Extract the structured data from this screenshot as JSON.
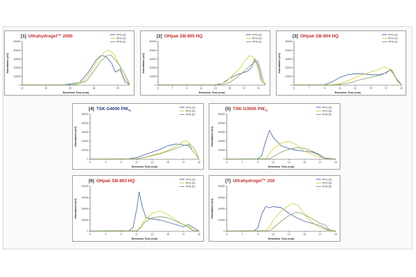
{
  "colors": {
    "panel_border": "#777777",
    "panel_background": "#ffffff",
    "title_number": "#222222",
    "title_name": "#c62828",
    "title_name_alt": "#27357e",
    "axis": "#444444"
  },
  "chart_data": [
    {
      "type": "line",
      "title_number": "[1]",
      "title_name": "Ultrahydrogel™ 2000",
      "title_subscript": "",
      "title_color": "#c62828",
      "xlabel": "Retention Time (min)",
      "ylabel": "Abundance (uV)",
      "xlim": [
        12,
        21
      ],
      "ylim": [
        0,
        50000
      ],
      "xticks": [
        12,
        14,
        16,
        18,
        20
      ],
      "yticks": [
        0,
        10000,
        20000,
        30000,
        40000,
        50000
      ],
      "legend_position": "top-right",
      "series": [
        {
          "name": "PPG-QC",
          "color": "#4f6fa8",
          "x": [
            12,
            15.5,
            16.8,
            17.5,
            18.2,
            18.6,
            19,
            19.5,
            19.8,
            20.2,
            20.6,
            21
          ],
          "y": [
            300,
            400,
            3000,
            14000,
            29000,
            34000,
            33000,
            25000,
            15000,
            18000,
            4000,
            500
          ]
        },
        {
          "name": "PPG-QC",
          "color": "#d7d23f",
          "x": [
            12,
            16.2,
            17.2,
            17.8,
            18.4,
            18.9,
            19.3,
            19.7,
            20.1,
            20.5,
            21
          ],
          "y": [
            300,
            400,
            5000,
            17000,
            30000,
            38000,
            40000,
            35000,
            24000,
            9000,
            600
          ]
        },
        {
          "name": "PPN-QC",
          "color": "#8aa86f",
          "x": [
            12,
            16.5,
            17.4,
            18,
            18.5,
            19,
            19.4,
            19.8,
            20.2,
            20.6,
            21
          ],
          "y": [
            300,
            400,
            5000,
            16000,
            26000,
            33000,
            35000,
            29000,
            22000,
            12000,
            1000
          ]
        }
      ]
    },
    {
      "type": "line",
      "title_number": "[2]",
      "title_name": "OHpak SB-805 HQ",
      "title_subscript": "",
      "title_color": "#c62828",
      "xlabel": "Retention Time (min)",
      "ylabel": "Abundance (uV)",
      "xlim": [
        5,
        20
      ],
      "ylim": [
        0,
        50000
      ],
      "xticks": [
        5,
        7,
        9,
        11,
        13,
        15,
        17,
        19
      ],
      "yticks": [
        0,
        10000,
        20000,
        30000,
        40000,
        50000
      ],
      "legend_position": "top-right",
      "series": [
        {
          "name": "PPG-QC",
          "color": "#4f6fa8",
          "x": [
            5,
            13,
            14,
            15,
            16,
            16.8,
            17.5,
            18,
            18.5,
            19,
            19.5,
            20
          ],
          "y": [
            300,
            500,
            2000,
            8000,
            12000,
            14000,
            16000,
            20000,
            30000,
            22000,
            4000,
            500
          ]
        },
        {
          "name": "PPG-QC",
          "color": "#d7d23f",
          "x": [
            5,
            13.5,
            14.5,
            15.5,
            16.5,
            17.2,
            17.8,
            18.3,
            18.8,
            19.3,
            20
          ],
          "y": [
            300,
            500,
            4000,
            12000,
            20000,
            29000,
            34000,
            32000,
            22000,
            6000,
            500
          ]
        },
        {
          "name": "PPN-QC",
          "color": "#8aa86f",
          "x": [
            5,
            14,
            15,
            16,
            17,
            17.8,
            18.4,
            18.9,
            19.3,
            19.7,
            20
          ],
          "y": [
            300,
            400,
            3000,
            9000,
            16000,
            22000,
            26000,
            28000,
            18000,
            5000,
            500
          ]
        }
      ]
    },
    {
      "type": "line",
      "title_number": "[3]",
      "title_name": "OHpak SB-804 HQ",
      "title_subscript": "",
      "title_color": "#c62828",
      "xlabel": "Retention Time (min)",
      "ylabel": "Abundance (uV)",
      "xlim": [
        5,
        19
      ],
      "ylim": [
        0,
        50000
      ],
      "xticks": [
        5,
        7,
        9,
        11,
        13,
        15,
        17,
        19
      ],
      "yticks": [
        0,
        10000,
        20000,
        30000,
        40000,
        50000
      ],
      "legend_position": "top-right",
      "series": [
        {
          "name": "PPG-QC",
          "color": "#4f6fa8",
          "x": [
            5,
            9,
            10,
            11,
            12,
            13,
            14,
            15,
            16,
            17,
            17.6,
            18.2,
            19
          ],
          "y": [
            300,
            500,
            4000,
            9000,
            12000,
            13000,
            13000,
            12000,
            12000,
            14000,
            18000,
            9000,
            800
          ]
        },
        {
          "name": "PPG-QC",
          "color": "#d7d23f",
          "x": [
            5,
            10,
            11,
            12,
            13,
            14,
            15,
            16,
            16.8,
            17.4,
            18,
            18.6,
            19
          ],
          "y": [
            300,
            500,
            2000,
            5000,
            9000,
            12000,
            15000,
            18000,
            21000,
            19000,
            12000,
            3000,
            500
          ]
        },
        {
          "name": "PPN-QC",
          "color": "#8aa86f",
          "x": [
            5,
            10.5,
            11.5,
            12.5,
            13.5,
            14.5,
            15.5,
            16.5,
            17.2,
            17.8,
            18.4,
            19
          ],
          "y": [
            300,
            500,
            1500,
            3000,
            6000,
            8000,
            10000,
            12000,
            16000,
            17000,
            6000,
            600
          ]
        }
      ]
    },
    {
      "type": "line",
      "title_number": "[4]",
      "title_name": "TSK G4000 PW",
      "title_subscript": "XL",
      "title_color": "#27357e",
      "xlabel": "Retention Time (min)",
      "ylabel": "Abundance (uV)",
      "xlim": [
        5,
        19
      ],
      "ylim": [
        0,
        50000
      ],
      "xticks": [
        5,
        7,
        9,
        11,
        13,
        15,
        17,
        19
      ],
      "yticks": [
        0,
        10000,
        20000,
        30000,
        40000,
        50000
      ],
      "legend_position": "top-right",
      "series": [
        {
          "name": "PPG-QC",
          "color": "#4f6fa8",
          "x": [
            5,
            10,
            11,
            12,
            13,
            14,
            15,
            16,
            17,
            17.7,
            18.3,
            19
          ],
          "y": [
            300,
            500,
            2000,
            5000,
            8000,
            11000,
            15000,
            17000,
            16000,
            15000,
            8000,
            700
          ]
        },
        {
          "name": "PPG-QC",
          "color": "#d7d23f",
          "x": [
            5,
            11,
            12,
            13,
            14,
            15,
            16,
            17,
            17.6,
            18.2,
            19
          ],
          "y": [
            300,
            500,
            2000,
            4500,
            7000,
            10000,
            14000,
            20000,
            20000,
            9000,
            500
          ]
        },
        {
          "name": "PPN-QC",
          "color": "#8aa86f",
          "x": [
            5,
            11,
            12,
            13,
            14,
            15,
            16,
            17,
            17.8,
            18.4,
            19
          ],
          "y": [
            300,
            600,
            2000,
            4000,
            6000,
            9000,
            12000,
            15000,
            17000,
            12000,
            800
          ]
        }
      ]
    },
    {
      "type": "line",
      "title_number": "[5]",
      "title_name": "TSK G3000 PW",
      "title_subscript": "XL",
      "title_color": "#c62828",
      "xlabel": "Retention Time (min)",
      "ylabel": "Abundance (uV)",
      "xlim": [
        5,
        19
      ],
      "ylim": [
        0,
        50000
      ],
      "xticks": [
        5,
        7,
        9,
        11,
        13,
        15,
        17,
        19
      ],
      "yticks": [
        0,
        10000,
        20000,
        30000,
        40000,
        50000
      ],
      "legend_position": "top-right",
      "series": [
        {
          "name": "PPG-QC",
          "color": "#4f6fa8",
          "x": [
            5,
            9,
            9.5,
            10,
            10.5,
            11,
            12,
            13,
            14,
            15,
            16,
            16.8,
            17.5,
            19
          ],
          "y": [
            300,
            600,
            4000,
            20000,
            32000,
            24000,
            15000,
            12000,
            10000,
            9000,
            8000,
            5000,
            1000,
            300
          ]
        },
        {
          "name": "PPG-QC",
          "color": "#d7d23f",
          "x": [
            5,
            10,
            10.5,
            11,
            12,
            13,
            14,
            15,
            16,
            17,
            19
          ],
          "y": [
            300,
            500,
            6000,
            12000,
            18000,
            20000,
            16000,
            9000,
            5000,
            2000,
            300
          ]
        },
        {
          "name": "PPN-QC",
          "color": "#8aa86f",
          "x": [
            5,
            10.5,
            11,
            12,
            13,
            14,
            15,
            16,
            17,
            17.6,
            19
          ],
          "y": [
            300,
            500,
            3000,
            8000,
            11000,
            13000,
            12000,
            9000,
            5000,
            1500,
            300
          ]
        }
      ]
    },
    {
      "type": "line",
      "title_number": "[6]",
      "title_name": "OHpak SB-803 HQ",
      "title_subscript": "",
      "title_color": "#c62828",
      "xlabel": "Retention Time (min)",
      "ylabel": "Abundance (uV)",
      "xlim": [
        5,
        19
      ],
      "ylim": [
        0,
        40000
      ],
      "xticks": [
        5,
        7,
        9,
        11,
        13,
        15,
        17,
        19
      ],
      "yticks": [
        0,
        10000,
        20000,
        30000,
        40000
      ],
      "legend_position": "top-right",
      "series": [
        {
          "name": "PPG-QC",
          "color": "#4f6fa8",
          "x": [
            5,
            10,
            10.5,
            11,
            11.3,
            11.7,
            12.2,
            13,
            14,
            15,
            16,
            17,
            17.6,
            19
          ],
          "y": [
            300,
            600,
            3000,
            20000,
            35000,
            22000,
            12000,
            11000,
            10000,
            8000,
            6000,
            4000,
            6000,
            300
          ]
        },
        {
          "name": "PPG-QC",
          "color": "#d7d23f",
          "x": [
            5,
            11,
            11.5,
            12,
            13,
            14,
            15,
            16,
            17,
            17.6,
            18.2,
            19
          ],
          "y": [
            300,
            500,
            4000,
            10000,
            16000,
            18000,
            15000,
            10000,
            6000,
            5000,
            1000,
            300
          ]
        },
        {
          "name": "PPN-QC",
          "color": "#8aa86f",
          "x": [
            5,
            11,
            11.5,
            12,
            13,
            14,
            15,
            16,
            17,
            17.5,
            18.2,
            19
          ],
          "y": [
            300,
            500,
            3000,
            8000,
            12000,
            13000,
            12000,
            9000,
            6000,
            4000,
            800,
            300
          ]
        }
      ]
    },
    {
      "type": "line",
      "title_number": "[7]",
      "title_name": "Ultrahydrogel™ 250",
      "title_subscript": "",
      "title_color": "#c62828",
      "xlabel": "Retention Time (min)",
      "ylabel": "Abundance (uV)",
      "xlim": [
        5,
        19
      ],
      "ylim": [
        0,
        40000
      ],
      "xticks": [
        5,
        7,
        9,
        11,
        13,
        15,
        17,
        19
      ],
      "yticks": [
        0,
        10000,
        20000,
        30000,
        40000
      ],
      "legend_position": "top-right",
      "series": [
        {
          "name": "PPG-QC",
          "color": "#4f6fa8",
          "x": [
            5,
            8.5,
            9,
            9.5,
            10,
            10.5,
            11,
            12,
            13,
            14,
            15,
            16,
            17,
            18,
            19
          ],
          "y": [
            300,
            500,
            3000,
            15000,
            22000,
            21000,
            22000,
            21000,
            16000,
            12000,
            9000,
            7000,
            5000,
            1500,
            300
          ]
        },
        {
          "name": "PPG-QC",
          "color": "#d7d23f",
          "x": [
            5,
            10,
            10.5,
            11,
            12,
            13,
            13.6,
            14.2,
            15,
            16,
            17,
            18,
            19
          ],
          "y": [
            300,
            500,
            4000,
            10000,
            18000,
            23000,
            25000,
            23000,
            15000,
            8000,
            3000,
            800,
            300
          ]
        },
        {
          "name": "PPN-QC",
          "color": "#8aa86f",
          "x": [
            5,
            10.5,
            11,
            12,
            13,
            14,
            15,
            16,
            17,
            17.6,
            18.2,
            19
          ],
          "y": [
            300,
            500,
            3000,
            9000,
            14000,
            17000,
            15000,
            11000,
            7000,
            6000,
            1500,
            300
          ]
        }
      ]
    }
  ]
}
